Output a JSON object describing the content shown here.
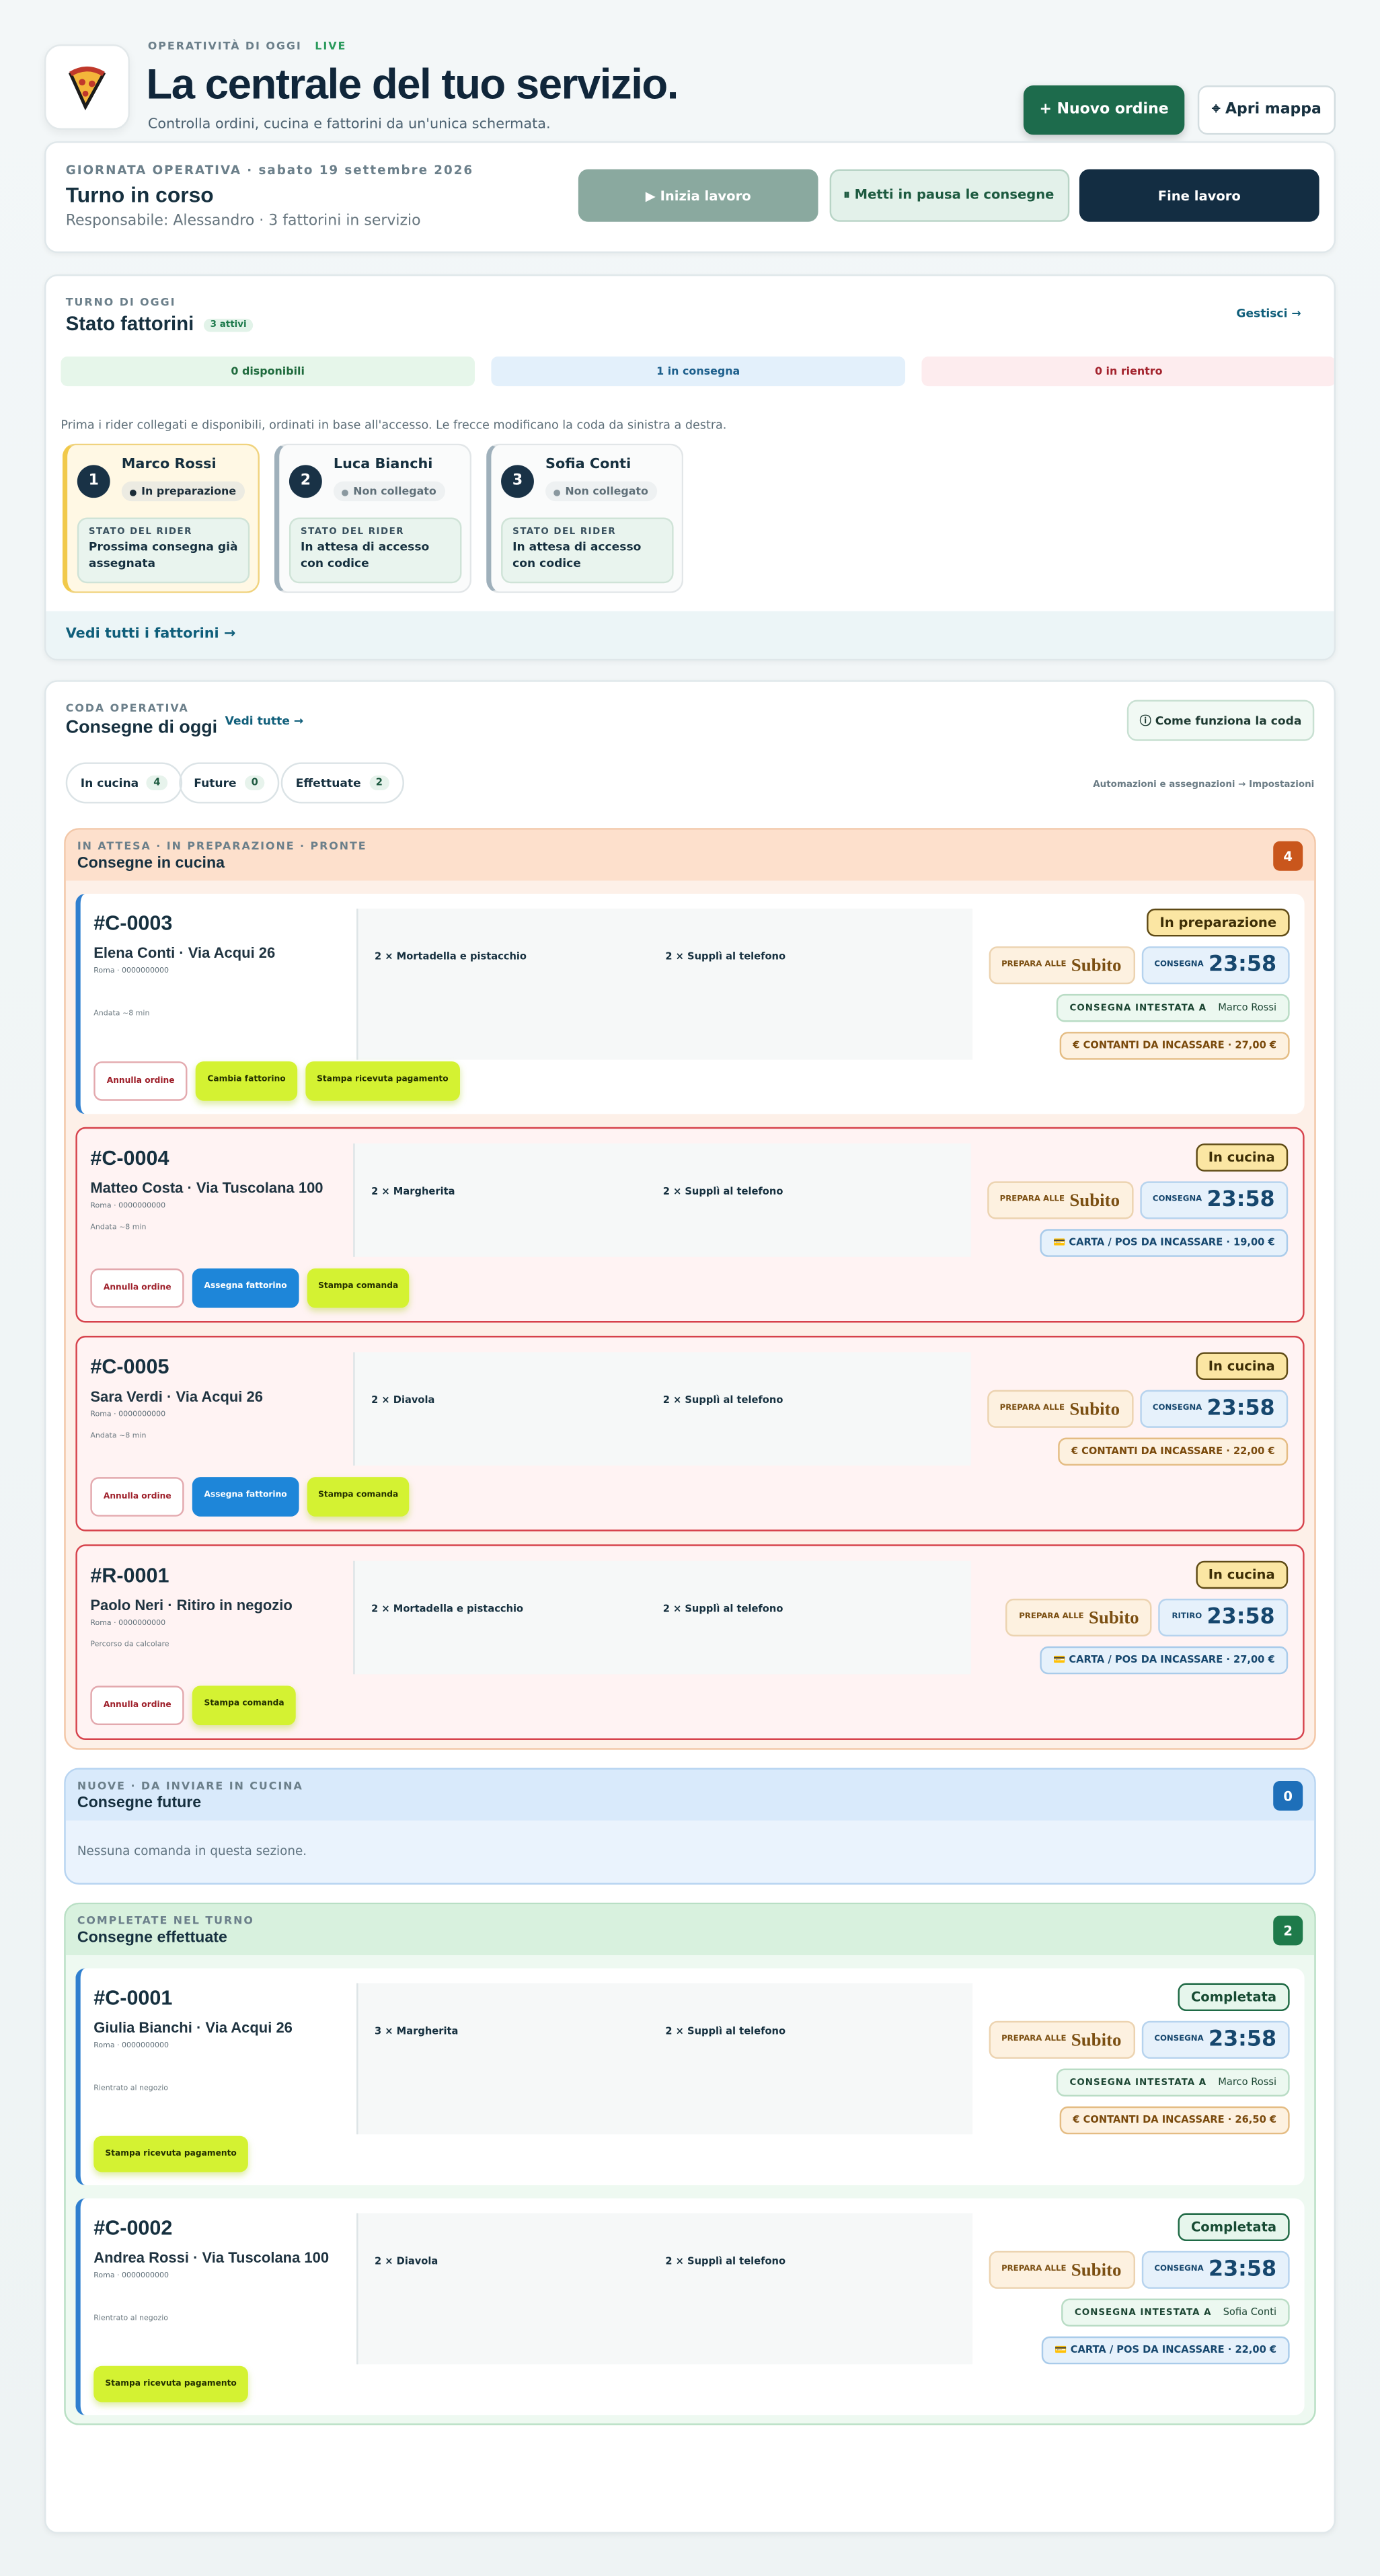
{
  "header": {
    "eyebrow": "OPERATIVITÀ DI OGGI",
    "live": "LIVE",
    "title": "La centrale del tuo servizio.",
    "subtitle": "Controlla ordini, cucina e fattorini da un'unica schermata.",
    "buttons": [
      "+ Nuovo ordine",
      "⌖ Apri mappa"
    ]
  },
  "shift": {
    "eyebrow": "GIORNATA OPERATIVA · sabato 19 settembre 2026",
    "title": "Turno in corso",
    "subtitle": "Responsabile: Alessandro · 3 fattorini in servizio",
    "buttons": [
      "▶ Inizia lavoro",
      "⏸ Metti in pausa le consegne",
      "Fine lavoro"
    ]
  },
  "riders": {
    "eyebrow": "TURNO DI OGGI",
    "title": "Stato fattorini",
    "badge": "3 attivi",
    "manage": "Gestisci →",
    "stats": [
      "0 disponibili",
      "1 in consegna",
      "0 in rientro"
    ],
    "note": "Prima i rider collegati e disponibili, ordinati in base all'accesso. Le frecce modificano la coda da sinistra a destra.",
    "cards": [
      {
        "rank": 1,
        "name": "Marco Rossi",
        "status": "In preparazione",
        "label": "STATO DEL RIDER",
        "detail": "Prossima consegna già assegnata"
      },
      {
        "rank": 2,
        "name": "Luca Bianchi",
        "status": "Non collegato",
        "label": "STATO DEL RIDER",
        "detail": "In attesa di accesso con codice"
      },
      {
        "rank": 3,
        "name": "Sofia Conti",
        "status": "Non collegato",
        "label": "STATO DEL RIDER",
        "detail": "In attesa di accesso con codice"
      }
    ],
    "footer": "Vedi tutti i fattorini →"
  },
  "queue": {
    "eyebrow": "CODA OPERATIVA",
    "title": "Consegne di oggi",
    "see_all": "Vedi tutte →",
    "help": "ⓘ Come funziona la coda",
    "tabs": [
      {
        "label": "In cucina",
        "count": 4
      },
      {
        "label": "Future",
        "count": 0
      },
      {
        "label": "Effettuate",
        "count": 2
      }
    ],
    "settings": "Automazioni e assegnazioni → Impostazioni",
    "sections": [
      {
        "eyebrow": "IN ATTESA · IN PREPARAZIONE · PRONTE",
        "title": "Consegne in cucina",
        "count": 4,
        "orders": [
          {
            "id": "#C-0003",
            "customer": "Elena Conti · Via Acqui 26",
            "city": "Roma · 0000000000",
            "items": [
              "2 × Mortadella e pistacchio",
              "2 × Supplì al telefono"
            ],
            "note": "Andata ~8 min",
            "status": "In preparazione",
            "prep_label": "PREPARA ALLE",
            "prep": "Subito",
            "time_label": "CONSEGNA",
            "time": "23:58",
            "assignee_label": "CONSEGNA INTESTATA A",
            "assignee": "Marco Rossi",
            "payment": "€ CONTANTI DA INCASSARE · 27,00 €",
            "actions": [
              "Annulla ordine",
              "Cambia fattorino",
              "Stampa ricevuta pagamento"
            ]
          },
          {
            "id": "#C-0004",
            "customer": "Matteo Costa · Via Tuscolana 100",
            "city": "Roma · 0000000000",
            "items": [
              "2 × Margherita",
              "2 × Supplì al telefono"
            ],
            "note": "Andata ~8 min",
            "status": "In cucina",
            "prep_label": "PREPARA ALLE",
            "prep": "Subito",
            "time_label": "CONSEGNA",
            "time": "23:58",
            "payment": "💳 CARTA / POS DA INCASSARE · 19,00 €",
            "actions": [
              "Annulla ordine",
              "Assegna fattorino",
              "Stampa comanda"
            ]
          },
          {
            "id": "#C-0005",
            "customer": "Sara Verdi · Via Acqui 26",
            "city": "Roma · 0000000000",
            "items": [
              "2 × Diavola",
              "2 × Supplì al telefono"
            ],
            "note": "Andata ~8 min",
            "status": "In cucina",
            "prep_label": "PREPARA ALLE",
            "prep": "Subito",
            "time_label": "CONSEGNA",
            "time": "23:58",
            "payment": "€ CONTANTI DA INCASSARE · 22,00 €",
            "actions": [
              "Annulla ordine",
              "Assegna fattorino",
              "Stampa comanda"
            ]
          },
          {
            "id": "#R-0001",
            "customer": "Paolo Neri · Ritiro in negozio",
            "city": "Roma · 0000000000",
            "items": [
              "2 × Mortadella e pistacchio",
              "2 × Supplì al telefono"
            ],
            "note": "Percorso da calcolare",
            "status": "In cucina",
            "prep_label": "PREPARA ALLE",
            "prep": "Subito",
            "time_label": "RITIRO",
            "time": "23:58",
            "payment": "💳 CARTA / POS DA INCASSARE · 27,00 €",
            "actions": [
              "Annulla ordine",
              "Stampa comanda"
            ]
          }
        ]
      },
      {
        "eyebrow": "NUOVE · DA INVIARE IN CUCINA",
        "title": "Consegne future",
        "count": 0,
        "empty": "Nessuna comanda in questa sezione.",
        "orders": []
      },
      {
        "eyebrow": "COMPLETATE NEL TURNO",
        "title": "Consegne effettuate",
        "count": 2,
        "orders": [
          {
            "id": "#C-0001",
            "customer": "Giulia Bianchi · Via Acqui 26",
            "city": "Roma · 0000000000",
            "items": [
              "3 × Margherita",
              "2 × Supplì al telefono"
            ],
            "note": "Rientrato al negozio",
            "status": "Completata",
            "prep_label": "PREPARA ALLE",
            "prep": "Subito",
            "time_label": "CONSEGNA",
            "time": "23:58",
            "assignee_label": "CONSEGNA INTESTATA A",
            "assignee": "Marco Rossi",
            "payment": "€ CONTANTI DA INCASSARE · 26,50 €",
            "actions": [
              "Stampa ricevuta pagamento"
            ]
          },
          {
            "id": "#C-0002",
            "customer": "Andrea Rossi · Via Tuscolana 100",
            "city": "Roma · 0000000000",
            "items": [
              "2 × Diavola",
              "2 × Supplì al telefono"
            ],
            "note": "Rientrato al negozio",
            "status": "Completata",
            "prep_label": "PREPARA ALLE",
            "prep": "Subito",
            "time_label": "CONSEGNA",
            "time": "23:58",
            "assignee_label": "CONSEGNA INTESTATA A",
            "assignee": "Sofia Conti",
            "payment": "💳 CARTA / POS DA INCASSARE · 22,00 €",
            "actions": [
              "Stampa ricevuta pagamento"
            ]
          }
        ]
      }
    ]
  }
}
